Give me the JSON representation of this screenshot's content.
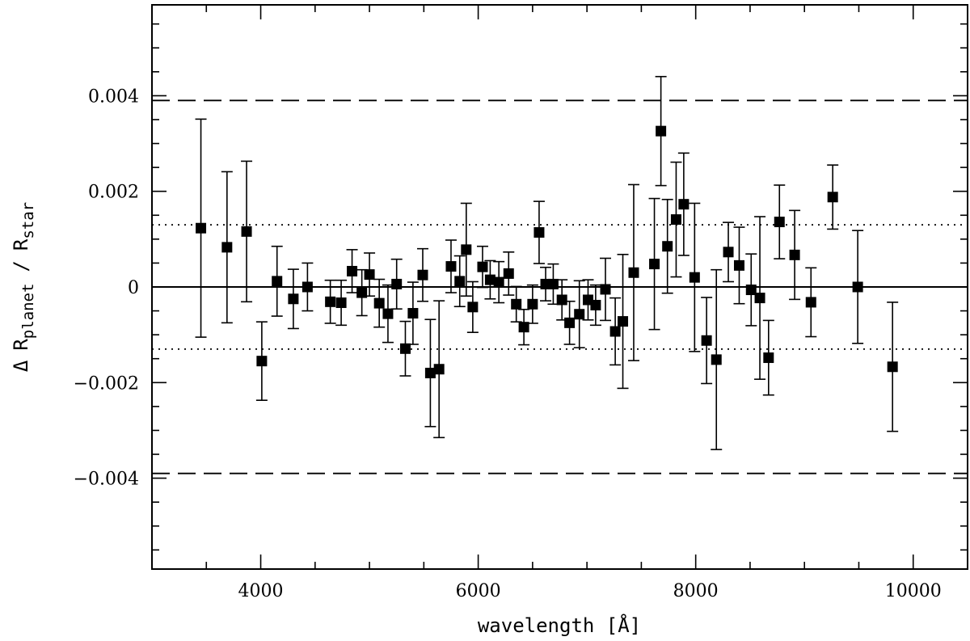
{
  "chart_data": {
    "type": "scatter",
    "xlabel": "wavelength [Å]",
    "ylabel": {
      "prefix": "Δ",
      "r_planet": "R",
      "planet_sub": "planet",
      "slash": "/",
      "r_star": "R",
      "star_sub": "star"
    },
    "xlim": [
      3000,
      10500
    ],
    "ylim": [
      -0.0059,
      0.0059
    ],
    "x_ticks": [
      4000,
      6000,
      8000,
      10000
    ],
    "x_tick_labels": [
      "4000",
      "6000",
      "8000",
      "10000"
    ],
    "y_ticks": [
      -0.004,
      -0.002,
      0,
      0.002,
      0.004
    ],
    "y_tick_labels": [
      "−0.004",
      "−0.002",
      "0",
      "0.002",
      "0.004"
    ],
    "x_minor_step": 500,
    "y_minor_step": 0.0005,
    "grid": false,
    "reference_lines": [
      {
        "y": 0,
        "style": "solid"
      },
      {
        "y": 0.0013,
        "style": "dotted"
      },
      {
        "y": -0.0013,
        "style": "dotted"
      },
      {
        "y": 0.0039,
        "style": "dashed"
      },
      {
        "y": -0.0039,
        "style": "dashed"
      }
    ],
    "series": [
      {
        "marker": "square",
        "color": "#000000",
        "points": [
          {
            "x": 3450,
            "y": 0.00123,
            "err": 0.00228
          },
          {
            "x": 3690,
            "y": 0.00083,
            "err": 0.00158
          },
          {
            "x": 3870,
            "y": 0.00116,
            "err": 0.00147
          },
          {
            "x": 4010,
            "y": -0.00155,
            "err": 0.00082
          },
          {
            "x": 4150,
            "y": 0.00012,
            "err": 0.00073
          },
          {
            "x": 4300,
            "y": -0.00025,
            "err": 0.00062
          },
          {
            "x": 4430,
            "y": 0.0,
            "err": 0.0005
          },
          {
            "x": 4640,
            "y": -0.00031,
            "err": 0.00045
          },
          {
            "x": 4740,
            "y": -0.00033,
            "err": 0.00047
          },
          {
            "x": 4840,
            "y": 0.00033,
            "err": 0.00045
          },
          {
            "x": 4930,
            "y": -0.00012,
            "err": 0.00048
          },
          {
            "x": 5000,
            "y": 0.00026,
            "err": 0.00045
          },
          {
            "x": 5090,
            "y": -0.00034,
            "err": 0.0005
          },
          {
            "x": 5170,
            "y": -0.00056,
            "err": 0.0006
          },
          {
            "x": 5250,
            "y": 6e-05,
            "err": 0.00052
          },
          {
            "x": 5330,
            "y": -0.00129,
            "err": 0.00057
          },
          {
            "x": 5400,
            "y": -0.00055,
            "err": 0.00065
          },
          {
            "x": 5490,
            "y": 0.00025,
            "err": 0.00055
          },
          {
            "x": 5560,
            "y": -0.0018,
            "err": 0.00112
          },
          {
            "x": 5640,
            "y": -0.00172,
            "err": 0.00143
          },
          {
            "x": 5750,
            "y": 0.00043,
            "err": 0.00055
          },
          {
            "x": 5830,
            "y": 0.00012,
            "err": 0.00053
          },
          {
            "x": 5890,
            "y": 0.00078,
            "err": 0.00097
          },
          {
            "x": 5950,
            "y": -0.00042,
            "err": 0.00053
          },
          {
            "x": 6040,
            "y": 0.00042,
            "err": 0.00043
          },
          {
            "x": 6110,
            "y": 0.00015,
            "err": 0.0004
          },
          {
            "x": 6190,
            "y": 0.0001,
            "err": 0.00043
          },
          {
            "x": 6280,
            "y": 0.00028,
            "err": 0.00045
          },
          {
            "x": 6350,
            "y": -0.00036,
            "err": 0.00037
          },
          {
            "x": 6420,
            "y": -0.00084,
            "err": 0.00037
          },
          {
            "x": 6500,
            "y": -0.00036,
            "err": 0.0004
          },
          {
            "x": 6560,
            "y": 0.00114,
            "err": 0.00065
          },
          {
            "x": 6620,
            "y": 6e-05,
            "err": 0.00035
          },
          {
            "x": 6690,
            "y": 6e-05,
            "err": 0.00042
          },
          {
            "x": 6770,
            "y": -0.00027,
            "err": 0.00042
          },
          {
            "x": 6840,
            "y": -0.00075,
            "err": 0.00045
          },
          {
            "x": 6930,
            "y": -0.00057,
            "err": 0.0007
          },
          {
            "x": 7010,
            "y": -0.00027,
            "err": 0.00042
          },
          {
            "x": 7080,
            "y": -0.00038,
            "err": 0.00042
          },
          {
            "x": 7170,
            "y": -5e-05,
            "err": 0.00065
          },
          {
            "x": 7260,
            "y": -0.00093,
            "err": 0.0007
          },
          {
            "x": 7330,
            "y": -0.00072,
            "err": 0.0014
          },
          {
            "x": 7430,
            "y": 0.0003,
            "err": 0.00184
          },
          {
            "x": 7620,
            "y": 0.00048,
            "err": 0.00137
          },
          {
            "x": 7680,
            "y": 0.00326,
            "err": 0.00114
          },
          {
            "x": 7740,
            "y": 0.00085,
            "err": 0.00098
          },
          {
            "x": 7820,
            "y": 0.00141,
            "err": 0.0012
          },
          {
            "x": 7890,
            "y": 0.00173,
            "err": 0.00107
          },
          {
            "x": 7990,
            "y": 0.0002,
            "err": 0.00155
          },
          {
            "x": 8100,
            "y": -0.00112,
            "err": 0.0009
          },
          {
            "x": 8190,
            "y": -0.00152,
            "err": 0.00188
          },
          {
            "x": 8300,
            "y": 0.00073,
            "err": 0.00062
          },
          {
            "x": 8400,
            "y": 0.00045,
            "err": 0.0008
          },
          {
            "x": 8510,
            "y": -6e-05,
            "err": 0.00075
          },
          {
            "x": 8590,
            "y": -0.00023,
            "err": 0.0017
          },
          {
            "x": 8670,
            "y": -0.00148,
            "err": 0.00078
          },
          {
            "x": 8770,
            "y": 0.00136,
            "err": 0.00077
          },
          {
            "x": 8910,
            "y": 0.00067,
            "err": 0.00093
          },
          {
            "x": 9060,
            "y": -0.00032,
            "err": 0.00072
          },
          {
            "x": 9260,
            "y": 0.00188,
            "err": 0.00067
          },
          {
            "x": 9490,
            "y": 0.0,
            "err": 0.00118
          },
          {
            "x": 9810,
            "y": -0.00167,
            "err": 0.00135
          }
        ]
      }
    ]
  }
}
